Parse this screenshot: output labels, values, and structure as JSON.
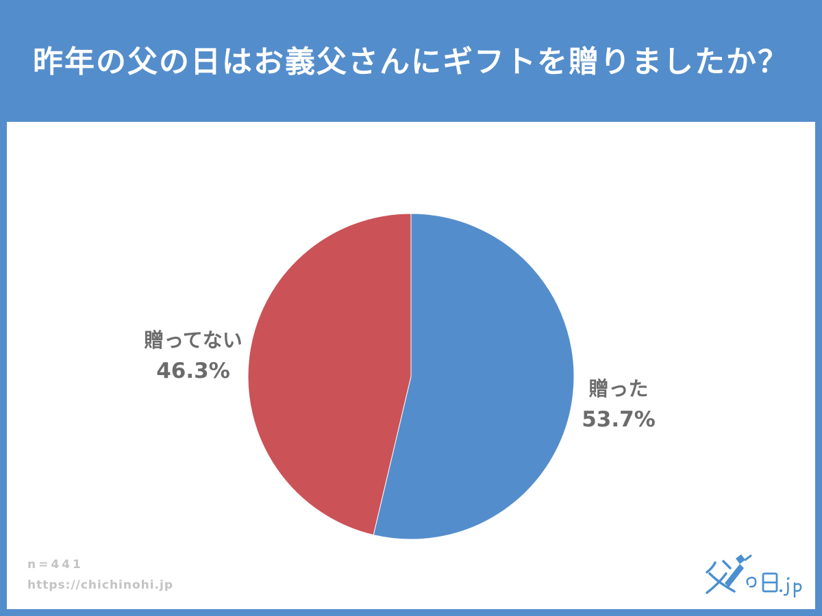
{
  "header": {
    "title": "昨年の父の日はお義父さんにギフトを贈りましたか？"
  },
  "chart_data": {
    "type": "pie",
    "title": "昨年の父の日はお義父さんにギフトを贈りましたか？",
    "slices": [
      {
        "label": "贈った",
        "value": 53.7,
        "display": "53.7%",
        "color": "#548dcb"
      },
      {
        "label": "贈ってない",
        "value": 46.3,
        "display": "46.3%",
        "color": "#cb5257"
      }
    ],
    "start_angle": "12 o'clock",
    "direction": "clockwise",
    "legend": "none"
  },
  "footer": {
    "sample_size": "n=441",
    "url": "https://chichinohi.jp"
  },
  "logo": {
    "text": "父の日.jp",
    "icon": "necktie-icon"
  }
}
